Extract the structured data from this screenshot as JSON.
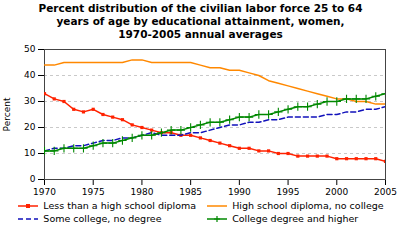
{
  "chart_data": {
    "type": "line",
    "title": "Percent distribution of the civilian labor force 25 to 64\nyears of age by educational attainment, women,\n1970-2005 annual averages",
    "ylabel": "Percent",
    "x": [
      1970,
      1971,
      1972,
      1973,
      1974,
      1975,
      1976,
      1977,
      1978,
      1979,
      1980,
      1981,
      1982,
      1983,
      1984,
      1985,
      1986,
      1987,
      1988,
      1989,
      1990,
      1991,
      1992,
      1993,
      1994,
      1995,
      1996,
      1997,
      1998,
      1999,
      2000,
      2001,
      2002,
      2003,
      2004,
      2005
    ],
    "xlim": [
      1970,
      2005
    ],
    "xticks": [
      1970,
      1975,
      1980,
      1985,
      1990,
      1995,
      2000,
      2005
    ],
    "ylim": [
      0,
      50
    ],
    "yticks": [
      0,
      10,
      20,
      30,
      40,
      50
    ],
    "grid": "y",
    "legend": "bottom",
    "series": [
      {
        "name": "Less than a high school diploma",
        "color": "#FF2200",
        "marker": "square",
        "line_style": "solid",
        "values": [
          33,
          31,
          30,
          27,
          26,
          27,
          25,
          24,
          23,
          21,
          20,
          19,
          18,
          18,
          17,
          17,
          16,
          15,
          14,
          13,
          12,
          12,
          11,
          11,
          10,
          10,
          9,
          9,
          9,
          9,
          8,
          8,
          8,
          8,
          8,
          7
        ]
      },
      {
        "name": "High school diploma, no college",
        "color": "#FF8800",
        "marker": "none",
        "line_style": "solid",
        "values": [
          44,
          44,
          45,
          45,
          45,
          45,
          45,
          45,
          45,
          46,
          46,
          45,
          45,
          45,
          45,
          45,
          44,
          43,
          43,
          42,
          42,
          41,
          40,
          38,
          37,
          36,
          35,
          34,
          33,
          32,
          31,
          31,
          30,
          30,
          29,
          29
        ]
      },
      {
        "name": "Some college, no degree",
        "color": "#1111BB",
        "marker": "none",
        "line_style": "dashed",
        "values": [
          11,
          12,
          12,
          13,
          13,
          14,
          15,
          15,
          16,
          16,
          17,
          18,
          17,
          17,
          17,
          18,
          18,
          19,
          20,
          21,
          21,
          22,
          22,
          23,
          23,
          24,
          24,
          24,
          24,
          25,
          25,
          26,
          26,
          27,
          27,
          28
        ]
      },
      {
        "name": "College degree and higher",
        "color": "#008800",
        "marker": "plus",
        "line_style": "solid",
        "values": [
          11,
          11,
          12,
          12,
          12,
          13,
          14,
          14,
          15,
          16,
          17,
          17,
          18,
          19,
          19,
          20,
          21,
          22,
          22,
          23,
          24,
          24,
          25,
          25,
          26,
          27,
          28,
          28,
          29,
          30,
          30,
          31,
          31,
          31,
          32,
          33
        ]
      }
    ]
  }
}
